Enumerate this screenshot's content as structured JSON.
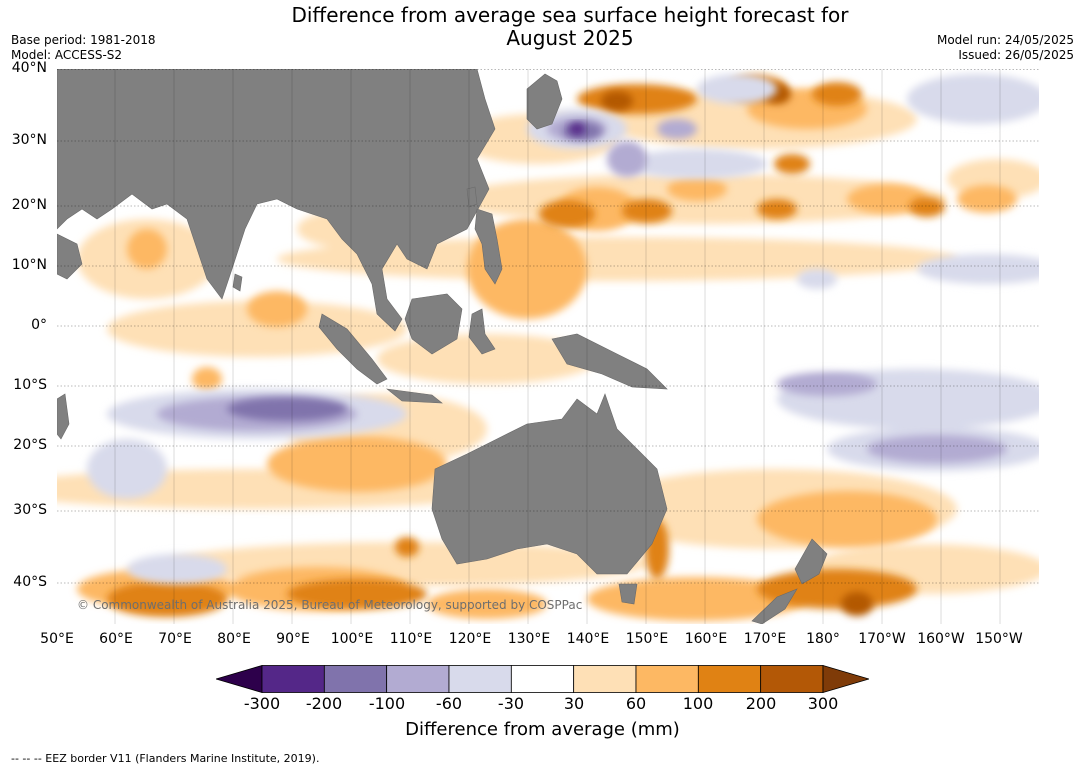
{
  "title_line1": "Difference from average sea surface height forecast for",
  "title_line2": "August 2025",
  "meta_left": {
    "base_period": "Base period: 1981-2018",
    "model": "Model: ACCESS-S2"
  },
  "meta_right": {
    "model_run": "Model run: 24/05/2025",
    "issued": "Issued: 26/05/2025"
  },
  "lat_labels": [
    "40°N",
    "30°N",
    "20°N",
    "10°N",
    "0°",
    "10°S",
    "20°S",
    "30°S",
    "40°S"
  ],
  "lon_labels": [
    "50°E",
    "60°E",
    "70°E",
    "80°E",
    "90°E",
    "100°E",
    "110°E",
    "120°E",
    "130°E",
    "140°E",
    "150°E",
    "160°E",
    "170°E",
    "180°",
    "170°W",
    "160°W",
    "150°W"
  ],
  "copyright": "© Commonwealth of Australia 2025, Bureau of Meteorology, supported by COSPPac",
  "colorbar": {
    "ticks": [
      "-300",
      "-200",
      "-100",
      "-60",
      "-30",
      "30",
      "60",
      "100",
      "200",
      "300"
    ],
    "colors": [
      "#2d004b",
      "#542788",
      "#8073ac",
      "#b2abd2",
      "#d8daeb",
      "#ffffff",
      "#fee0b6",
      "#fdb863",
      "#e08214",
      "#b35806",
      "#7f3b08"
    ],
    "label": "Difference from average (mm)"
  },
  "colors": {
    "land": "#808080"
  },
  "footnote": "--  --  -- EEZ border V11 (Flanders Marine Institute, 2019)."
}
